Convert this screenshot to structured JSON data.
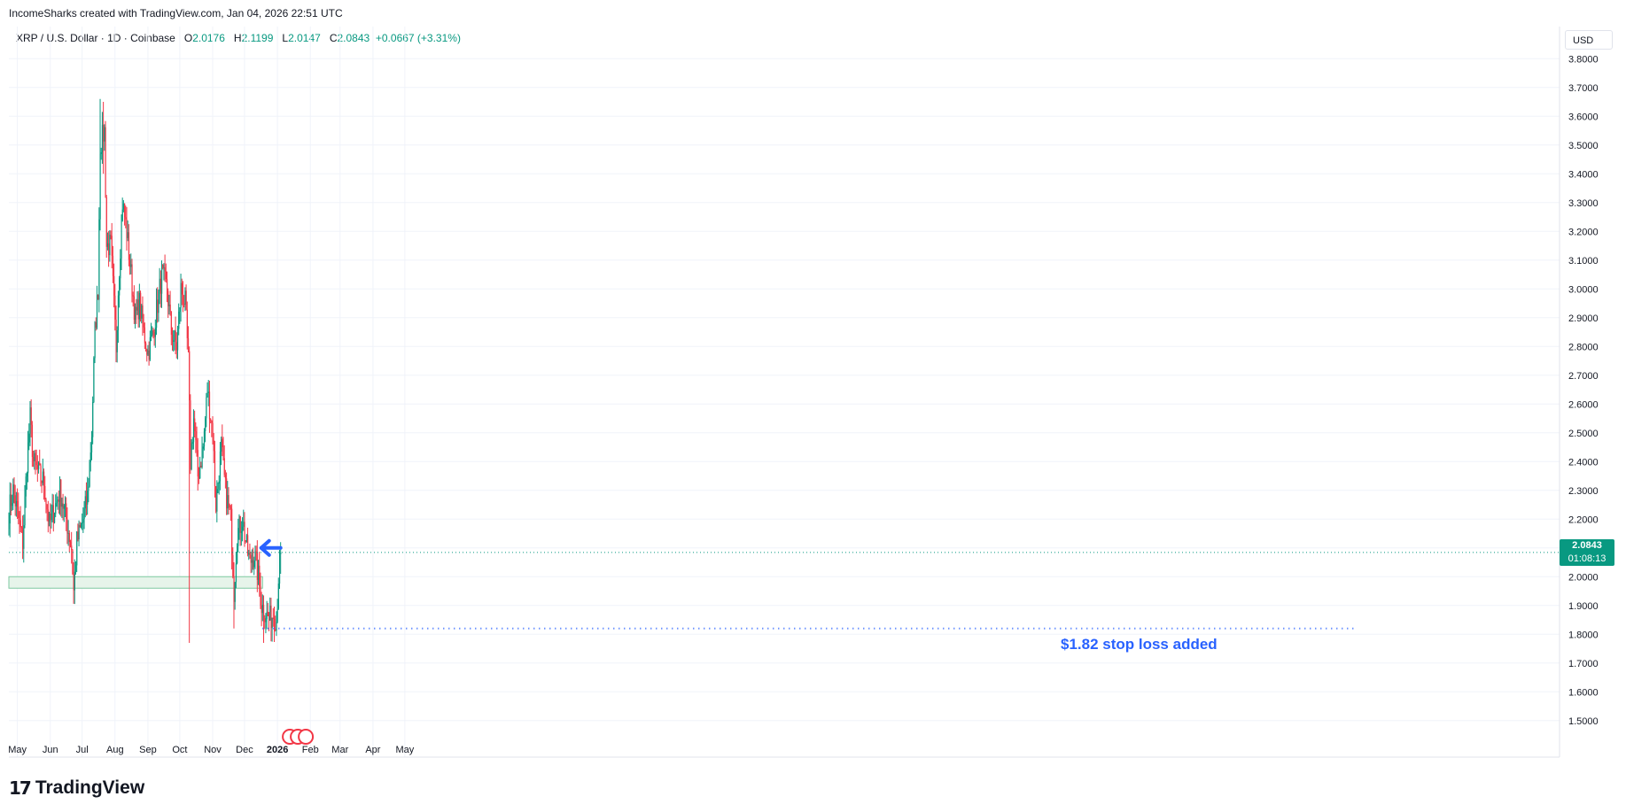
{
  "caption": "IncomeSharks created with TradingView.com, Jan 04, 2026 22:51 UTC",
  "legend": {
    "symbol": "XRP / U.S. Dollar · 1D · Coinbase",
    "o_label": "O",
    "o_value": "2.0176",
    "h_label": "H",
    "h_value": "2.1199",
    "l_label": "L",
    "l_value": "2.0147",
    "c_label": "C",
    "c_value": "2.0843",
    "change": "+0.0667 (+3.31%)"
  },
  "currency": "USD",
  "last_price": {
    "price": "2.0843",
    "countdown": "01:08:13"
  },
  "annotation": "$1.82 stop loss added",
  "brand": {
    "name": "TradingView",
    "mark": "17"
  },
  "colors": {
    "up": "#089981",
    "down": "#f23645",
    "accent": "#2962ff",
    "zone_fill": "#e6f4ea",
    "zone_stroke": "#7fc9a0"
  },
  "chart_data": {
    "type": "candlestick",
    "title": "XRP / U.S. Dollar · 1D · Coinbase",
    "x_ticks": [
      "May",
      "Jun",
      "Jul",
      "Aug",
      "Sep",
      "Oct",
      "Nov",
      "Dec",
      "2026",
      "Feb",
      "Mar",
      "Apr",
      "May"
    ],
    "y_ticks": [
      "1.5000",
      "1.6000",
      "1.7000",
      "1.8000",
      "1.9000",
      "2.0000",
      "2.1000",
      "2.2000",
      "2.3000",
      "2.4000",
      "2.5000",
      "2.6000",
      "2.7000",
      "2.8000",
      "2.9000",
      "3.0000",
      "3.1000",
      "3.2000",
      "3.3000",
      "3.4000",
      "3.5000",
      "3.6000",
      "3.7000",
      "3.8000"
    ],
    "ylim": [
      1.45,
      3.85
    ],
    "start_date": "2025-04-23",
    "path_points": [
      [
        "2025-04-23",
        2.23
      ],
      [
        "2025-04-27",
        2.3
      ],
      [
        "2025-05-02",
        2.2
      ],
      [
        "2025-05-06",
        2.12
      ],
      [
        "2025-05-10",
        2.4
      ],
      [
        "2025-05-13",
        2.55
      ],
      [
        "2025-05-16",
        2.4
      ],
      [
        "2025-05-22",
        2.35
      ],
      [
        "2025-05-26",
        2.33
      ],
      [
        "2025-05-31",
        2.18
      ],
      [
        "2025-06-06",
        2.25
      ],
      [
        "2025-06-10",
        2.3
      ],
      [
        "2025-06-16",
        2.2
      ],
      [
        "2025-06-21",
        2.1
      ],
      [
        "2025-06-23",
        1.95
      ],
      [
        "2025-06-26",
        2.12
      ],
      [
        "2025-07-02",
        2.2
      ],
      [
        "2025-07-06",
        2.28
      ],
      [
        "2025-07-10",
        2.5
      ],
      [
        "2025-07-13",
        2.85
      ],
      [
        "2025-07-16",
        3.0
      ],
      [
        "2025-07-18",
        3.5
      ],
      [
        "2025-07-22",
        3.55
      ],
      [
        "2025-07-24",
        3.15
      ],
      [
        "2025-07-28",
        3.15
      ],
      [
        "2025-08-02",
        2.8
      ],
      [
        "2025-08-04",
        3.0
      ],
      [
        "2025-08-08",
        3.3
      ],
      [
        "2025-08-12",
        3.2
      ],
      [
        "2025-08-16",
        3.05
      ],
      [
        "2025-08-20",
        2.9
      ],
      [
        "2025-08-24",
        2.95
      ],
      [
        "2025-08-28",
        2.85
      ],
      [
        "2025-09-01",
        2.78
      ],
      [
        "2025-09-06",
        2.85
      ],
      [
        "2025-09-12",
        3.0
      ],
      [
        "2025-09-14",
        3.05
      ],
      [
        "2025-09-19",
        3.0
      ],
      [
        "2025-09-23",
        2.85
      ],
      [
        "2025-09-28",
        2.8
      ],
      [
        "2025-10-02",
        3.0
      ],
      [
        "2025-10-06",
        2.95
      ],
      [
        "2025-10-09",
        2.75
      ],
      [
        "2025-10-11",
        2.4
      ],
      [
        "2025-10-14",
        2.55
      ],
      [
        "2025-10-18",
        2.35
      ],
      [
        "2025-10-23",
        2.45
      ],
      [
        "2025-10-27",
        2.65
      ],
      [
        "2025-11-01",
        2.5
      ],
      [
        "2025-11-04",
        2.25
      ],
      [
        "2025-11-09",
        2.45
      ],
      [
        "2025-11-13",
        2.3
      ],
      [
        "2025-11-18",
        2.2
      ],
      [
        "2025-11-21",
        1.95
      ],
      [
        "2025-11-24",
        2.15
      ],
      [
        "2025-11-29",
        2.2
      ],
      [
        "2025-12-03",
        2.1
      ],
      [
        "2025-12-06",
        2.05
      ],
      [
        "2025-12-10",
        2.08
      ],
      [
        "2025-12-14",
        2.0
      ],
      [
        "2025-12-17",
        1.9
      ],
      [
        "2025-12-20",
        1.88
      ],
      [
        "2025-12-24",
        1.85
      ],
      [
        "2025-12-28",
        1.87
      ],
      [
        "2025-12-31",
        1.85
      ],
      [
        "2026-01-02",
        2.0
      ],
      [
        "2026-01-04",
        2.08
      ]
    ],
    "notable_wicks": [
      [
        "2025-06-23",
        1.91,
        2.05
      ],
      [
        "2025-07-18",
        3.45,
        3.66
      ],
      [
        "2025-07-21",
        3.4,
        3.65
      ],
      [
        "2025-10-10",
        1.77,
        2.8
      ],
      [
        "2025-11-21",
        1.82,
        2.05
      ],
      [
        "2025-12-19",
        1.77,
        1.9
      ],
      [
        "2026-01-04",
        2.01,
        2.12
      ]
    ],
    "support_zone": {
      "top": 2.0,
      "bottom": 1.96,
      "from": "2025-04-23",
      "to": "2025-12-18"
    },
    "stop_loss_level": 1.82,
    "last_close": 2.0843,
    "annotation": "$1.82 stop loss added"
  }
}
